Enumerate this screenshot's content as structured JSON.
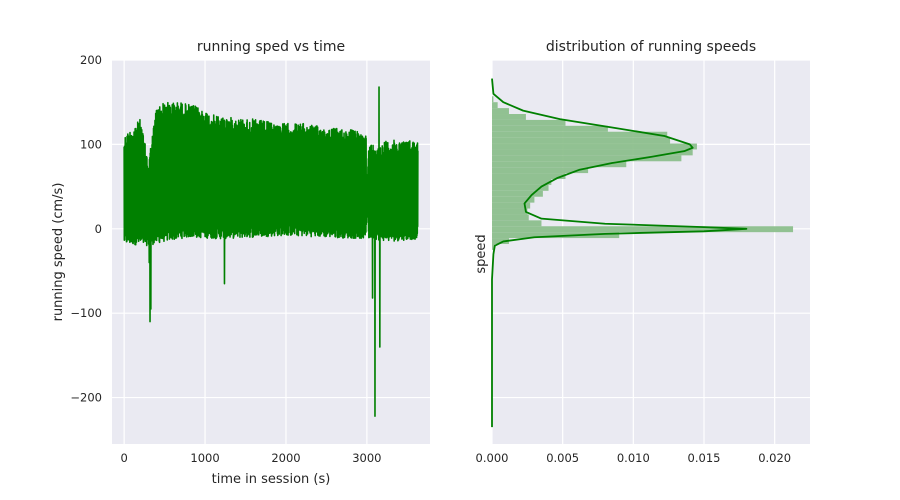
{
  "colors": {
    "axes_bg": "#EAEAF2",
    "grid": "#FFFFFF",
    "line": "#008000",
    "hist_fill": "#8CBF8C",
    "text": "#262626"
  },
  "chart_data": [
    {
      "type": "line",
      "title": "running sped vs time",
      "xlabel": "time in session (s)",
      "ylabel": "running speed (cm/s)",
      "xlim": [
        -150,
        3780
      ],
      "ylim": [
        -255,
        200
      ],
      "xticks": [
        0,
        1000,
        2000,
        3000
      ],
      "xtick_labels": [
        "0",
        "1000",
        "2000",
        "3000"
      ],
      "yticks": [
        -200,
        -100,
        0,
        100,
        200
      ],
      "ytick_labels": [
        "−200",
        "−100",
        "0",
        "100",
        "200"
      ],
      "grid": true,
      "series": [
        {
          "x_range": [
            0,
            3630
          ],
          "band_upper": [
            [
              0,
              110
            ],
            [
              200,
              130
            ],
            [
              300,
              80
            ],
            [
              400,
              145
            ],
            [
              500,
              150
            ],
            [
              700,
              150
            ],
            [
              900,
              145
            ],
            [
              1100,
              135
            ],
            [
              1300,
              132
            ],
            [
              1600,
              130
            ],
            [
              1900,
              125
            ],
            [
              2200,
              125
            ],
            [
              2500,
              120
            ],
            [
              2800,
              118
            ],
            [
              2990,
              112
            ],
            [
              3000,
              30
            ],
            [
              3020,
              100
            ],
            [
              3300,
              105
            ],
            [
              3630,
              105
            ]
          ],
          "band_lower": [
            [
              0,
              -18
            ],
            [
              300,
              -20
            ],
            [
              500,
              -15
            ],
            [
              800,
              -10
            ],
            [
              1200,
              -12
            ],
            [
              1600,
              -10
            ],
            [
              2000,
              -8
            ],
            [
              2500,
              -10
            ],
            [
              2990,
              -12
            ],
            [
              3000,
              30
            ],
            [
              3020,
              -12
            ],
            [
              3300,
              -15
            ],
            [
              3630,
              -12
            ]
          ],
          "spikes": [
            {
              "x": 310,
              "y": -40
            },
            {
              "x": 320,
              "y": -110
            },
            {
              "x": 330,
              "y": -95
            },
            {
              "x": 1240,
              "y": -65
            },
            {
              "x": 3070,
              "y": -82
            },
            {
              "x": 3100,
              "y": -222
            },
            {
              "x": 3150,
              "y": 168
            },
            {
              "x": 3160,
              "y": -140
            }
          ]
        }
      ]
    },
    {
      "type": "histogram",
      "title": "distribution of running speeds",
      "xlabel": "",
      "ylabel": "speed",
      "xlim": [
        0,
        0.0225
      ],
      "ylim": [
        -255,
        200
      ],
      "xticks": [
        0.0,
        0.005,
        0.01,
        0.015,
        0.02
      ],
      "xtick_labels": [
        "0.000",
        "0.005",
        "0.010",
        "0.015",
        "0.020"
      ],
      "yticks": [
        -200,
        -100,
        0,
        100,
        200
      ],
      "grid": true,
      "bins": [
        {
          "y0": 150,
          "y1": 157,
          "density": 0.0001
        },
        {
          "y0": 143,
          "y1": 150,
          "density": 0.0004
        },
        {
          "y0": 136,
          "y1": 143,
          "density": 0.0012
        },
        {
          "y0": 129,
          "y1": 136,
          "density": 0.0024
        },
        {
          "y0": 122,
          "y1": 129,
          "density": 0.0052
        },
        {
          "y0": 115,
          "y1": 122,
          "density": 0.0082
        },
        {
          "y0": 108,
          "y1": 115,
          "density": 0.0124
        },
        {
          "y0": 101,
          "y1": 108,
          "density": 0.0126
        },
        {
          "y0": 94,
          "y1": 101,
          "density": 0.0145
        },
        {
          "y0": 87,
          "y1": 94,
          "density": 0.0142
        },
        {
          "y0": 80,
          "y1": 87,
          "density": 0.0134
        },
        {
          "y0": 73,
          "y1": 80,
          "density": 0.0095
        },
        {
          "y0": 66,
          "y1": 73,
          "density": 0.0068
        },
        {
          "y0": 59,
          "y1": 66,
          "density": 0.0052
        },
        {
          "y0": 52,
          "y1": 59,
          "density": 0.0042
        },
        {
          "y0": 45,
          "y1": 52,
          "density": 0.004
        },
        {
          "y0": 38,
          "y1": 45,
          "density": 0.0036
        },
        {
          "y0": 31,
          "y1": 38,
          "density": 0.003
        },
        {
          "y0": 24,
          "y1": 31,
          "density": 0.0027
        },
        {
          "y0": 17,
          "y1": 24,
          "density": 0.0025
        },
        {
          "y0": 10,
          "y1": 17,
          "density": 0.0026
        },
        {
          "y0": 3,
          "y1": 10,
          "density": 0.0035
        },
        {
          "y0": -4,
          "y1": 3,
          "density": 0.0213
        },
        {
          "y0": -11,
          "y1": -4,
          "density": 0.009
        },
        {
          "y0": -18,
          "y1": -11,
          "density": 0.0012
        },
        {
          "y0": -25,
          "y1": -18,
          "density": 0.0002
        }
      ],
      "kde": [
        [
          178,
          0.0
        ],
        [
          160,
          0.0001
        ],
        [
          150,
          0.0008
        ],
        [
          140,
          0.0022
        ],
        [
          130,
          0.0048
        ],
        [
          120,
          0.0085
        ],
        [
          110,
          0.0122
        ],
        [
          100,
          0.014
        ],
        [
          96,
          0.0142
        ],
        [
          92,
          0.0136
        ],
        [
          85,
          0.0112
        ],
        [
          78,
          0.0085
        ],
        [
          70,
          0.0062
        ],
        [
          60,
          0.0046
        ],
        [
          50,
          0.0035
        ],
        [
          40,
          0.0028
        ],
        [
          30,
          0.0023
        ],
        [
          20,
          0.0024
        ],
        [
          12,
          0.0035
        ],
        [
          6,
          0.008
        ],
        [
          2,
          0.015
        ],
        [
          0,
          0.018
        ],
        [
          -3,
          0.015
        ],
        [
          -6,
          0.008
        ],
        [
          -10,
          0.003
        ],
        [
          -15,
          0.0008
        ],
        [
          -20,
          0.0002
        ],
        [
          -30,
          0.0001
        ],
        [
          -60,
          0.0
        ],
        [
          -235,
          0.0
        ]
      ]
    }
  ]
}
